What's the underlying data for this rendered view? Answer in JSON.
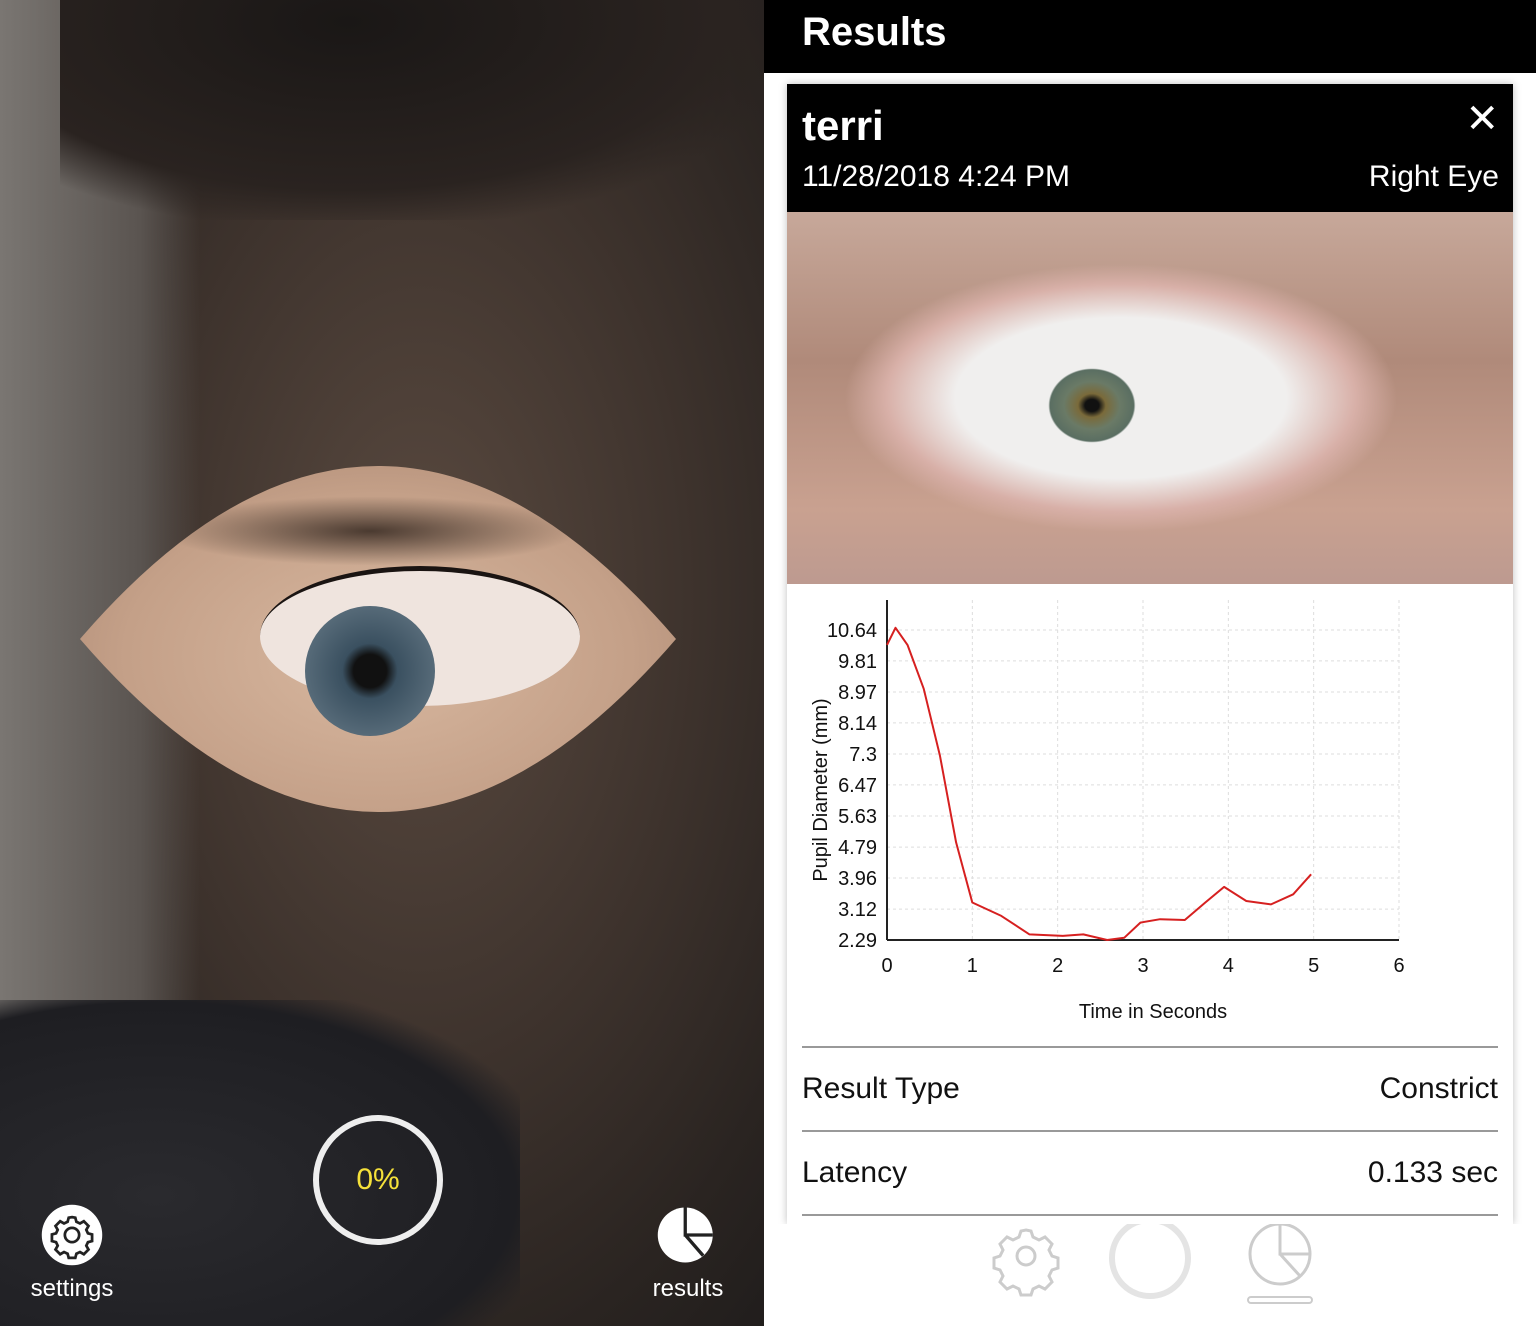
{
  "camera": {
    "progress_label": "0%",
    "progress": 0,
    "settings_label": "settings",
    "results_label": "results",
    "accent": "#f5e13a"
  },
  "results": {
    "title": "Results",
    "card": {
      "name": "terri",
      "date": "11/28/2018 4:24 PM",
      "eye": "Right Eye",
      "close_icon": "close-icon"
    },
    "rows": [
      {
        "label": "Result Type",
        "value": "Constrict"
      },
      {
        "label": "Latency",
        "value": "0.133 sec"
      }
    ],
    "tabbar": {
      "icons": [
        "gear-icon",
        "record-circle-icon",
        "pie-chart-icon"
      ]
    }
  },
  "chart_data": {
    "type": "line",
    "xlabel": "Time in Seconds",
    "ylabel": "Pupil Diameter (mm)",
    "xlim": [
      0,
      6
    ],
    "ylim": [
      2.29,
      11.4
    ],
    "xticks": [
      "0",
      "1",
      "2",
      "3",
      "4",
      "5",
      "6"
    ],
    "yticks": [
      "2.29",
      "3.12",
      "3.96",
      "4.79",
      "5.63",
      "6.47",
      "7.3",
      "8.14",
      "8.97",
      "9.81",
      "10.64"
    ],
    "grid": true,
    "color": "#d62020",
    "x": [
      0,
      0.1,
      0.24,
      0.43,
      0.62,
      0.81,
      1.0,
      1.34,
      1.67,
      2.06,
      2.3,
      2.58,
      2.78,
      2.97,
      3.2,
      3.49,
      3.73,
      3.95,
      4.21,
      4.5,
      4.76,
      4.97
    ],
    "y": [
      10.24,
      10.7,
      10.24,
      9.06,
      7.26,
      4.92,
      3.3,
      2.94,
      2.44,
      2.4,
      2.44,
      2.29,
      2.35,
      2.76,
      2.85,
      2.83,
      3.3,
      3.72,
      3.34,
      3.25,
      3.52,
      4.06
    ]
  }
}
